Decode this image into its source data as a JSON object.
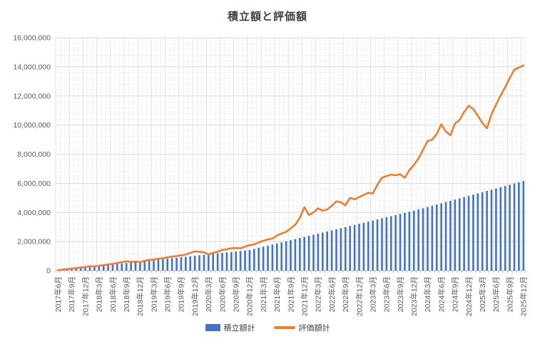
{
  "title": "積立額と評価額",
  "legend": {
    "items": [
      {
        "label": "積立額計",
        "marker": "bar",
        "color": "#4472C4"
      },
      {
        "label": "評価額計",
        "marker": "line",
        "color": "#ED7D31"
      }
    ]
  },
  "colors": {
    "bar": "#4472C4",
    "line": "#ED7D31",
    "title_text": "#404040",
    "axis_text": "#595959",
    "grid_major": "#D9D9D9",
    "grid_minor": "#F2F2F2",
    "axis_line": "#BFBFBF",
    "background": "#FFFFFF"
  },
  "y_axis": {
    "tick_labels": [
      "0",
      "2,000,000",
      "4,000,000",
      "6,000,000",
      "8,000,000",
      "10,000,000",
      "12,000,000",
      "14,000,000",
      "16,000,000"
    ]
  },
  "chart_data": {
    "type": "combo-bar-line",
    "title": "積立額と評価額",
    "xlabel": "",
    "ylabel": "",
    "ylim": [
      0,
      16000000
    ],
    "y_major_step": 2000000,
    "y_minor_step": 400000,
    "x_label_interval": 3,
    "grid": true,
    "legend_position": "bottom",
    "categories": [
      "2017年6月",
      "2017年7月",
      "2017年8月",
      "2017年9月",
      "2017年10月",
      "2017年11月",
      "2017年12月",
      "2018年1月",
      "2018年2月",
      "2018年3月",
      "2018年4月",
      "2018年5月",
      "2018年6月",
      "2018年7月",
      "2018年8月",
      "2018年9月",
      "2018年10月",
      "2018年11月",
      "2018年12月",
      "2019年1月",
      "2019年2月",
      "2019年3月",
      "2019年4月",
      "2019年5月",
      "2019年6月",
      "2019年7月",
      "2019年8月",
      "2019年9月",
      "2019年10月",
      "2019年11月",
      "2019年12月",
      "2020年1月",
      "2020年2月",
      "2020年3月",
      "2020年4月",
      "2020年5月",
      "2020年6月",
      "2020年7月",
      "2020年8月",
      "2020年9月",
      "2020年10月",
      "2020年11月",
      "2020年12月",
      "2021年1月",
      "2021年2月",
      "2021年3月",
      "2021年4月",
      "2021年5月",
      "2021年6月",
      "2021年7月",
      "2021年8月",
      "2021年9月",
      "2021年10月",
      "2021年11月",
      "2021年12月",
      "2022年1月",
      "2022年2月",
      "2022年3月",
      "2022年4月",
      "2022年5月",
      "2022年6月",
      "2022年7月",
      "2022年8月",
      "2022年9月",
      "2022年10月",
      "2022年11月",
      "2022年12月",
      "2023年1月",
      "2023年2月",
      "2023年3月",
      "2023年4月",
      "2023年5月",
      "2023年6月",
      "2023年7月",
      "2023年8月",
      "2023年9月",
      "2023年10月",
      "2023年11月",
      "2023年12月",
      "2024年1月",
      "2024年2月",
      "2024年3月",
      "2024年4月",
      "2024年5月",
      "2024年6月",
      "2024年7月",
      "2024年8月",
      "2024年9月",
      "2024年10月",
      "2024年11月",
      "2024年12月",
      "2025年1月",
      "2025年2月",
      "2025年3月",
      "2025年4月",
      "2025年5月",
      "2025年6月",
      "2025年7月",
      "2025年8月",
      "2025年9月",
      "2025年10月",
      "2025年11月",
      "2025年12月"
    ],
    "series": [
      {
        "name": "積立額計",
        "render": "bar",
        "color": "#4472C4",
        "values": [
          33000,
          66000,
          99000,
          132000,
          165000,
          198000,
          231000,
          264000,
          297000,
          330000,
          363000,
          396000,
          429000,
          462000,
          495000,
          528000,
          561000,
          594000,
          627000,
          660000,
          693000,
          726000,
          759000,
          792000,
          825000,
          858000,
          891000,
          924000,
          957000,
          990000,
          1023000,
          1056000,
          1089000,
          1122000,
          1155000,
          1188000,
          1221000,
          1254000,
          1287000,
          1320000,
          1353000,
          1386000,
          1419000,
          1494000,
          1569000,
          1644000,
          1719000,
          1794000,
          1869000,
          1944000,
          2019000,
          2094000,
          2169000,
          2244000,
          2319000,
          2394000,
          2469000,
          2544000,
          2619000,
          2694000,
          2769000,
          2844000,
          2919000,
          2994000,
          3069000,
          3144000,
          3219000,
          3294000,
          3369000,
          3444000,
          3519000,
          3594000,
          3669000,
          3744000,
          3819000,
          3894000,
          3969000,
          4044000,
          4119000,
          4204000,
          4289000,
          4374000,
          4459000,
          4544000,
          4629000,
          4714000,
          4799000,
          4884000,
          4969000,
          5054000,
          5139000,
          5224000,
          5309000,
          5394000,
          5479000,
          5564000,
          5649000,
          5734000,
          5819000,
          5904000,
          5989000,
          6074000,
          6159000
        ]
      },
      {
        "name": "評価額計",
        "render": "line",
        "color": "#ED7D31",
        "values": [
          30000,
          70000,
          105000,
          140000,
          175000,
          210000,
          250000,
          300000,
          300000,
          330000,
          380000,
          420000,
          460000,
          520000,
          580000,
          640000,
          600000,
          630000,
          580000,
          680000,
          730000,
          760000,
          820000,
          850000,
          920000,
          960000,
          1000000,
          1050000,
          1100000,
          1220000,
          1320000,
          1300000,
          1260000,
          1100000,
          1220000,
          1300000,
          1420000,
          1460000,
          1540000,
          1550000,
          1530000,
          1650000,
          1750000,
          1800000,
          1940000,
          2050000,
          2150000,
          2200000,
          2420000,
          2550000,
          2660000,
          2900000,
          3150000,
          3630000,
          4360000,
          3820000,
          4000000,
          4280000,
          4120000,
          4200000,
          4450000,
          4760000,
          4700000,
          4490000,
          5000000,
          4900000,
          5050000,
          5200000,
          5350000,
          5300000,
          5900000,
          6380000,
          6500000,
          6600000,
          6550000,
          6620000,
          6380000,
          6900000,
          7260000,
          7700000,
          8300000,
          8900000,
          9000000,
          9400000,
          10050000,
          9550000,
          9300000,
          10100000,
          10350000,
          10900000,
          11330000,
          11100000,
          10650000,
          10150000,
          9780000,
          10750000,
          11400000,
          12030000,
          12600000,
          13230000,
          13800000,
          13950000,
          14100000
        ]
      }
    ]
  }
}
